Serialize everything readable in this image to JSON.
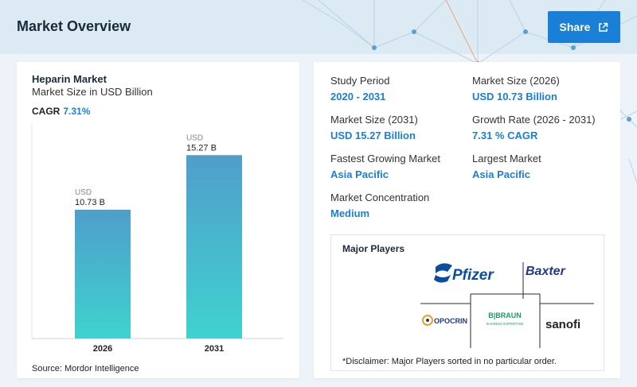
{
  "header": {
    "title": "Market Overview",
    "share_label": "Share"
  },
  "chart_card": {
    "title": "Heparin Market",
    "subtitle": "Market Size in USD Billion",
    "cagr_label": "CAGR",
    "cagr_value": "7.31%",
    "source": "Source: Mordor Intelligence"
  },
  "chart_data": {
    "type": "bar",
    "categories": [
      "2026",
      "2031"
    ],
    "values": [
      10.73,
      15.27
    ],
    "data_labels": [
      {
        "unit": "USD",
        "value": "10.73 B"
      },
      {
        "unit": "USD",
        "value": "15.27 B"
      }
    ],
    "ylim": [
      0,
      18
    ],
    "grid": false,
    "colors": {
      "top": "#4f9ecb",
      "bottom": "#40d2cf"
    }
  },
  "stats": [
    {
      "label": "Study Period",
      "value": "2020 - 2031"
    },
    {
      "label": "Market Size (2026)",
      "value": "USD 10.73 Billion"
    },
    {
      "label": "Market Size (2031)",
      "value": "USD 15.27 Billion"
    },
    {
      "label": "Growth Rate (2026 - 2031)",
      "value": "7.31 % CAGR"
    },
    {
      "label": "Fastest Growing Market",
      "value": "Asia Pacific"
    },
    {
      "label": "Largest Market",
      "value": "Asia Pacific"
    },
    {
      "label": "Market Concentration",
      "value": "Medium"
    }
  ],
  "players": {
    "title": "Major Players",
    "logos": [
      "Pfizer",
      "Baxter",
      "OPOCRIN",
      "B|BRAUN",
      "SHARING EXPERTISE",
      "sanofi"
    ],
    "disclaimer": "*Disclaimer: Major Players sorted in no particular order."
  },
  "colors": {
    "accent": "#1a7fd6",
    "header_bg": "#dceaf4",
    "page_bg": "#edf3f8"
  }
}
